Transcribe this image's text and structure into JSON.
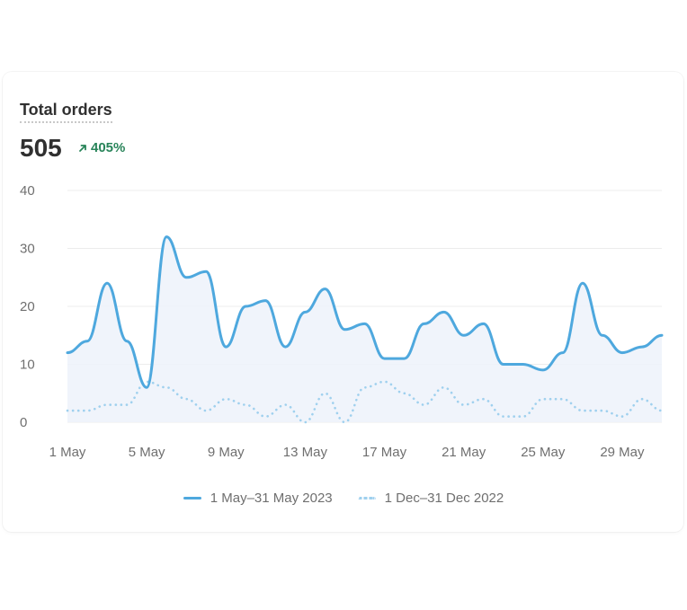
{
  "card": {
    "title": "Total orders",
    "value": "505",
    "change": "405%",
    "change_icon": "arrow-up-right-icon",
    "change_color": "#29845a"
  },
  "colors": {
    "current": "#4ea8de",
    "previous": "#9fd0ee",
    "fill": "#eef3fb",
    "grid": "#ececec"
  },
  "chart_data": {
    "type": "line",
    "title": "Total orders",
    "xlabel": "",
    "ylabel": "",
    "ylim": [
      0,
      40
    ],
    "yticks": [
      0,
      10,
      20,
      30,
      40
    ],
    "x": [
      "1 May",
      "2 May",
      "3 May",
      "4 May",
      "5 May",
      "6 May",
      "7 May",
      "8 May",
      "9 May",
      "10 May",
      "11 May",
      "12 May",
      "13 May",
      "14 May",
      "15 May",
      "16 May",
      "17 May",
      "18 May",
      "19 May",
      "20 May",
      "21 May",
      "22 May",
      "23 May",
      "24 May",
      "25 May",
      "26 May",
      "27 May",
      "28 May",
      "29 May",
      "30 May",
      "31 May"
    ],
    "xticks": [
      "1 May",
      "5 May",
      "9 May",
      "13 May",
      "17 May",
      "21 May",
      "25 May",
      "29 May"
    ],
    "grid": true,
    "legend_position": "bottom",
    "series": [
      {
        "name": "1 May–31 May 2023",
        "style": "solid",
        "values": [
          12,
          14,
          24,
          14,
          6,
          32,
          25,
          26,
          13,
          20,
          21,
          13,
          19,
          23,
          16,
          17,
          11,
          11,
          17,
          19,
          15,
          17,
          10,
          10,
          9,
          12,
          24,
          15,
          12,
          13,
          15
        ]
      },
      {
        "name": "1 Dec–31 Dec 2022",
        "style": "dotted",
        "values": [
          2,
          2,
          3,
          3,
          7,
          6,
          4,
          2,
          4,
          3,
          1,
          3,
          0,
          5,
          0,
          6,
          7,
          5,
          3,
          6,
          3,
          4,
          1,
          1,
          4,
          4,
          2,
          2,
          1,
          4,
          2
        ]
      }
    ]
  }
}
